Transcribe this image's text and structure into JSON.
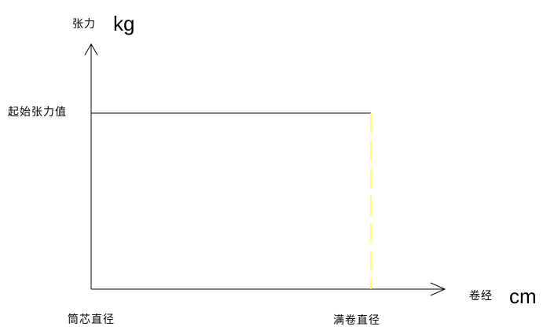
{
  "axes": {
    "y_title": "张力",
    "y_unit": "kg",
    "x_title": "卷经",
    "x_unit": "cm"
  },
  "labels": {
    "start_tension": "起始张力值",
    "core_diameter": "筒芯直径",
    "full_roll_diameter": "满卷直径"
  },
  "colors": {
    "axis": "#000000",
    "tension_line": "#000000",
    "full_roll_marker": "#ffff33",
    "background": "#ffffff"
  }
}
